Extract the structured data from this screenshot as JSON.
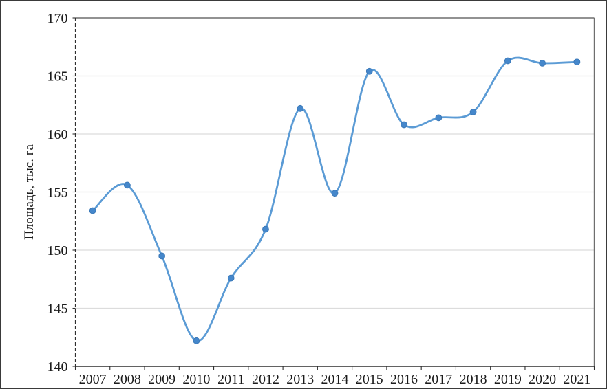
{
  "chart_data": {
    "type": "line",
    "title": "",
    "xlabel": "",
    "ylabel": "Площадь, тыс. га",
    "categories": [
      "2007",
      "2008",
      "2009",
      "2010",
      "2011",
      "2012",
      "2013",
      "2014",
      "2015",
      "2016",
      "2017",
      "2018",
      "2019",
      "2020",
      "2021"
    ],
    "values": [
      153.4,
      155.6,
      149.5,
      142.2,
      147.6,
      151.8,
      162.2,
      154.9,
      165.4,
      160.8,
      161.4,
      161.9,
      166.3,
      166.1,
      166.2
    ],
    "ylim": [
      140,
      170
    ],
    "ytick_step": 5,
    "yticks": [
      140,
      145,
      150,
      155,
      160,
      165,
      170
    ],
    "grid": "horizontal",
    "legend": "none",
    "smooth": true,
    "marker": "circle",
    "colors": {
      "line": "#5B9BD5",
      "marker_fill": "#4587CB",
      "marker_stroke": "#3C79B8",
      "gridline": "#DCDCDC",
      "axis": "#2F2F2F",
      "plot_border": "#6E6E6E",
      "text": "#1C1C1C",
      "frame": "#3A3A3A"
    }
  }
}
